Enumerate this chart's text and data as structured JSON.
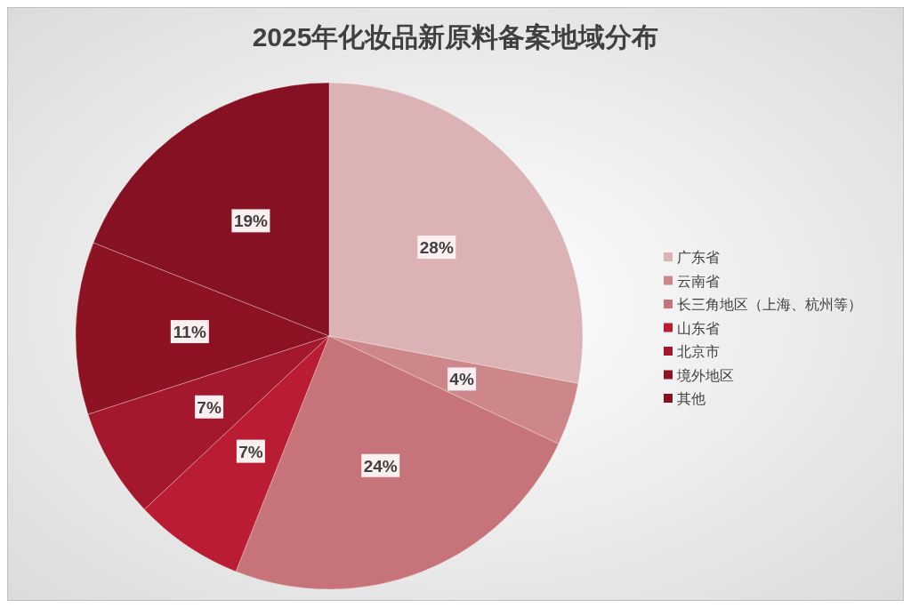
{
  "chart_data": {
    "type": "pie",
    "title": "2025年化妆品新原料备案地域分布",
    "categories": [
      "广东省",
      "云南省",
      "长三角地区（上海、杭州等）",
      "山东省",
      "北京市",
      "境外地区",
      "其他"
    ],
    "values": [
      28,
      4,
      24,
      7,
      7,
      11,
      19
    ],
    "colors": [
      "#dcb3b5",
      "#cd878b",
      "#c67479",
      "#ba1c33",
      "#a3182c",
      "#8c1224",
      "#861122"
    ],
    "value_labels": [
      "28%",
      "4%",
      "24%",
      "7%",
      "7%",
      "11%",
      "19%"
    ],
    "legend": "right"
  }
}
